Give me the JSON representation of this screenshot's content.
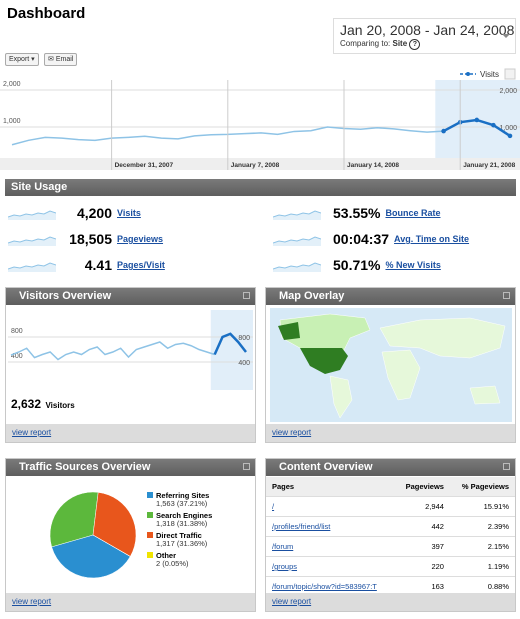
{
  "header": {
    "title": "Dashboard",
    "date_range": "Jan 20, 2008 - Jan 24, 2008",
    "comparing_label": "Comparing to:",
    "comparing_value": "Site",
    "help": "?"
  },
  "toolbar": {
    "export": "Export",
    "email": "Email"
  },
  "chart_data": {
    "type": "line",
    "categories": [
      null,
      null,
      null,
      null,
      null,
      null,
      "December 31, 2007",
      null,
      null,
      null,
      null,
      null,
      null,
      "January 7, 2008",
      null,
      null,
      null,
      null,
      null,
      null,
      "January 14, 2008",
      null,
      null,
      null,
      null,
      null,
      null,
      "January 21, 2008",
      null,
      null,
      null
    ],
    "series": [
      {
        "name": "Visits",
        "color": "#8ec3e6",
        "highlight_color": "#1a6fc4",
        "values": [
          520,
          640,
          720,
          700,
          660,
          640,
          700,
          720,
          750,
          700,
          680,
          760,
          790,
          800,
          820,
          840,
          800,
          880,
          900,
          1000,
          960,
          940,
          980,
          950,
          900,
          860,
          890,
          1130,
          1190,
          1050,
          760
        ]
      }
    ],
    "ylim": [
      0,
      2200
    ],
    "yticks": [
      {
        "value": 2000,
        "label": "2,000"
      },
      {
        "value": 1000,
        "label": "1,000"
      }
    ],
    "grid": true
  },
  "site_usage": {
    "title": "Site Usage",
    "metrics": [
      {
        "value": "4,200",
        "label": "Visits"
      },
      {
        "value": "18,505",
        "label": "Pageviews"
      },
      {
        "value": "4.41",
        "label": "Pages/Visit"
      },
      {
        "value": "53.55%",
        "label": "Bounce Rate"
      },
      {
        "value": "00:04:37",
        "label": "Avg. Time on Site"
      },
      {
        "value": "50.71%",
        "label": "% New Visits"
      }
    ]
  },
  "visitors_overview": {
    "title": "Visitors Overview",
    "chart": {
      "type": "line",
      "color": "#8ec3e6",
      "highlight_color": "#1a6fc4",
      "values": [
        510,
        560,
        620,
        470,
        520,
        560,
        440,
        520,
        560,
        520,
        600,
        640,
        520,
        560,
        620,
        480,
        600,
        640,
        680,
        720,
        620,
        680,
        700,
        660,
        600,
        560,
        520,
        800,
        850,
        720,
        560
      ],
      "ylim": [
        0,
        1120
      ],
      "yticks": [
        800,
        400
      ],
      "grid": true
    },
    "total": "2,632",
    "total_label": "Visitors",
    "link": "view report"
  },
  "map_overlay": {
    "title": "Map Overlay",
    "link": "view report"
  },
  "traffic_sources": {
    "title": "Traffic Sources Overview",
    "chart": {
      "type": "pie",
      "categories": [
        "Referring Sites",
        "Search Engines",
        "Direct Traffic",
        "Other"
      ],
      "values": [
        1563,
        1318,
        1317,
        2
      ],
      "value_labels": [
        "1,563 (37.21%)",
        "1,318 (31.38%)",
        "1,317 (31.36%)",
        "2 (0.05%)"
      ],
      "colors": [
        "#2a8fd0",
        "#5cb83c",
        "#e8561c",
        "#f0e400"
      ]
    },
    "link": "view report"
  },
  "content_overview": {
    "title": "Content Overview",
    "columns": [
      "Pages",
      "Pageviews",
      "% Pageviews"
    ],
    "rows": [
      [
        "/",
        "2,944",
        "15.91%"
      ],
      [
        "/profiles/friend/list",
        "442",
        "2.39%"
      ],
      [
        "/forum",
        "397",
        "2.15%"
      ],
      [
        "/groups",
        "220",
        "1.19%"
      ],
      [
        "/forum/topic/show?id=583967:T",
        "163",
        "0.88%"
      ]
    ],
    "link": "view report"
  }
}
